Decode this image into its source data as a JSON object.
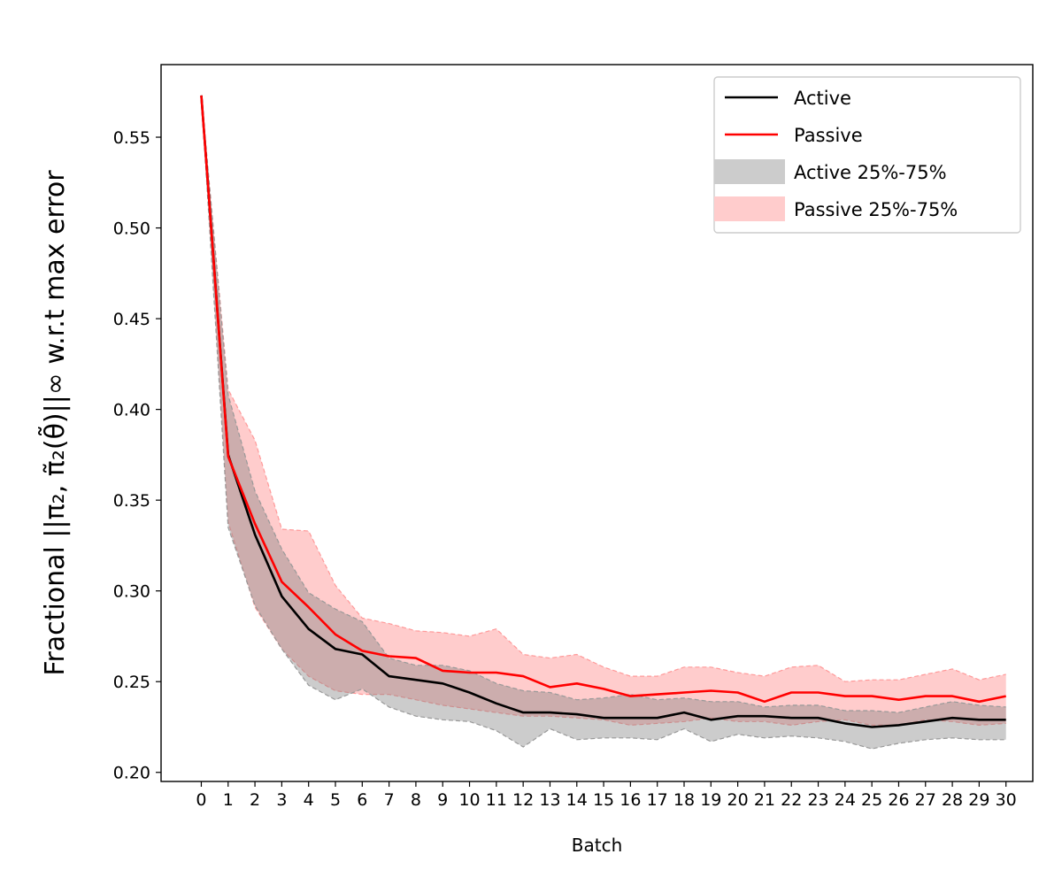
{
  "chart_data": {
    "type": "line",
    "title": "",
    "xlabel": "Batch",
    "ylabel": "Fractional ||π₂, π̃₂(θ̃)||∞ w.r.t max error",
    "xlim": [
      -1.5,
      31.0
    ],
    "ylim": [
      0.195,
      0.59
    ],
    "x": [
      0,
      1,
      2,
      3,
      4,
      5,
      6,
      7,
      8,
      9,
      10,
      11,
      12,
      13,
      14,
      15,
      16,
      17,
      18,
      19,
      20,
      21,
      22,
      23,
      24,
      25,
      26,
      27,
      28,
      29,
      30
    ],
    "xtick_labels": [
      "0",
      "1",
      "2",
      "3",
      "4",
      "5",
      "6",
      "7",
      "8",
      "9",
      "10",
      "11",
      "12",
      "13",
      "14",
      "15",
      "16",
      "17",
      "18",
      "19",
      "20",
      "21",
      "22",
      "23",
      "24",
      "25",
      "26",
      "27",
      "28",
      "29",
      "30"
    ],
    "yticks": [
      0.2,
      0.25,
      0.3,
      0.35,
      0.4,
      0.45,
      0.5,
      0.55
    ],
    "ytick_labels": [
      "0.20",
      "0.25",
      "0.30",
      "0.35",
      "0.40",
      "0.45",
      "0.50",
      "0.55"
    ],
    "grid": false,
    "legend_position": "top-right",
    "series": [
      {
        "name": "Active",
        "kind": "line",
        "color": "#000000",
        "values": [
          0.573,
          0.375,
          0.331,
          0.297,
          0.279,
          0.268,
          0.265,
          0.253,
          0.251,
          0.249,
          0.244,
          0.238,
          0.233,
          0.233,
          0.232,
          0.23,
          0.23,
          0.23,
          0.233,
          0.229,
          0.231,
          0.231,
          0.23,
          0.23,
          0.227,
          0.225,
          0.226,
          0.228,
          0.23,
          0.229,
          0.229
        ]
      },
      {
        "name": "Passive",
        "kind": "line",
        "color": "#ff0000",
        "values": [
          0.573,
          0.374,
          0.337,
          0.305,
          0.291,
          0.276,
          0.267,
          0.264,
          0.263,
          0.256,
          0.255,
          0.255,
          0.253,
          0.247,
          0.249,
          0.246,
          0.242,
          0.243,
          0.244,
          0.245,
          0.244,
          0.239,
          0.244,
          0.244,
          0.242,
          0.242,
          0.24,
          0.242,
          0.242,
          0.239,
          0.242
        ]
      },
      {
        "name": "Active 25%-75%",
        "kind": "band",
        "color": "#cccccc",
        "edge_color": "#999999",
        "lower": [
          0.573,
          0.335,
          0.292,
          0.268,
          0.248,
          0.24,
          0.246,
          0.236,
          0.231,
          0.229,
          0.228,
          0.223,
          0.214,
          0.224,
          0.218,
          0.219,
          0.219,
          0.218,
          0.224,
          0.217,
          0.221,
          0.219,
          0.22,
          0.219,
          0.217,
          0.213,
          0.216,
          0.218,
          0.219,
          0.218,
          0.218
        ],
        "upper": [
          0.573,
          0.408,
          0.355,
          0.323,
          0.299,
          0.29,
          0.283,
          0.263,
          0.259,
          0.259,
          0.256,
          0.249,
          0.245,
          0.244,
          0.24,
          0.241,
          0.243,
          0.24,
          0.241,
          0.239,
          0.239,
          0.236,
          0.237,
          0.237,
          0.234,
          0.234,
          0.233,
          0.236,
          0.239,
          0.237,
          0.236
        ]
      },
      {
        "name": "Passive 25%-75%",
        "kind": "band",
        "color": "#ffcccc",
        "edge_color": "#ff9999",
        "lower": [
          0.573,
          0.338,
          0.291,
          0.268,
          0.253,
          0.245,
          0.243,
          0.243,
          0.24,
          0.237,
          0.235,
          0.233,
          0.231,
          0.231,
          0.23,
          0.229,
          0.226,
          0.227,
          0.228,
          0.23,
          0.228,
          0.228,
          0.226,
          0.228,
          0.229,
          0.226,
          0.226,
          0.229,
          0.228,
          0.226,
          0.227
        ],
        "upper": [
          0.573,
          0.411,
          0.383,
          0.334,
          0.333,
          0.303,
          0.285,
          0.282,
          0.278,
          0.277,
          0.275,
          0.279,
          0.265,
          0.263,
          0.265,
          0.258,
          0.253,
          0.253,
          0.258,
          0.258,
          0.255,
          0.253,
          0.258,
          0.259,
          0.25,
          0.251,
          0.251,
          0.254,
          0.257,
          0.251,
          0.254
        ]
      }
    ]
  }
}
